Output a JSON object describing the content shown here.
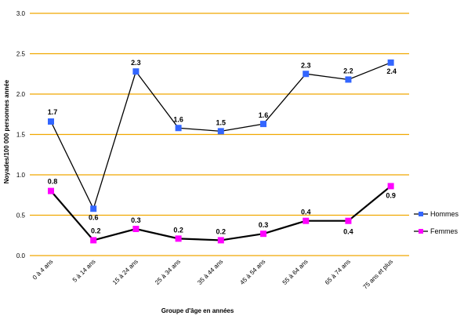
{
  "chart_data": {
    "type": "line",
    "xlabel": "Groupe d'âge en années",
    "ylabel": "Noyades/100 000 personnes année",
    "ylim": [
      0,
      3.0
    ],
    "yticks": [
      "0.0",
      "0.5",
      "1.0",
      "1.5",
      "2.0",
      "2.5",
      "3.0"
    ],
    "grid": true,
    "legend_position": "right",
    "categories": [
      "0 à 4 ans",
      "5 à 14 ans",
      "15 à 24 ans",
      "25 à 34 ans",
      "35 à 44 ans",
      "45 à 54 ans",
      "55 à 64 ans",
      "65 à 74 ans",
      "75 ans et plus"
    ],
    "series": [
      {
        "name": "Hommes",
        "color": "#3366ff",
        "values": [
          1.66,
          0.58,
          2.28,
          1.58,
          1.54,
          1.63,
          2.25,
          2.18,
          2.39
        ],
        "labels": [
          "1.7",
          "0.6",
          "2.3",
          "1.6",
          "1.5",
          "1.6",
          "2.3",
          "2.2",
          "2.4"
        ]
      },
      {
        "name": "Femmes",
        "color": "#ff00ff",
        "values": [
          0.8,
          0.19,
          0.33,
          0.21,
          0.19,
          0.27,
          0.43,
          0.43,
          0.86
        ],
        "labels": [
          "0.8",
          "0.2",
          "0.3",
          "0.2",
          "0.2",
          "0.3",
          "0.4",
          "0.4",
          "0.9"
        ]
      }
    ],
    "gridline_color": "#f0a800",
    "line_color": "#000000"
  }
}
